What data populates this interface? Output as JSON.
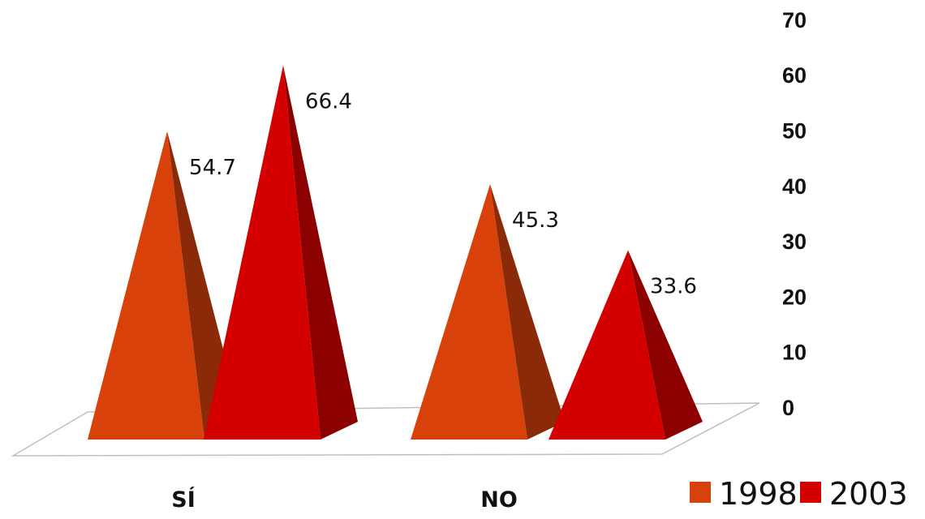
{
  "chart_data": {
    "type": "bar",
    "style": "3d-pyramid",
    "categories": [
      "SÍ",
      "NO"
    ],
    "series": [
      {
        "name": "1998",
        "values": [
          54.7,
          45.3
        ],
        "color": "#d9410a",
        "shade": "#8a2a08"
      },
      {
        "name": "2003",
        "values": [
          66.4,
          33.6
        ],
        "color": "#d40000",
        "shade": "#8c0000"
      }
    ],
    "data_labels": [
      [
        "54.7",
        "45.3"
      ],
      [
        "66.4",
        "33.6"
      ]
    ],
    "ylim": [
      0,
      70
    ],
    "yticks": [
      0,
      10,
      20,
      30,
      40,
      50,
      60,
      70
    ],
    "y_axis_position": "right",
    "legend": "bottom-right",
    "grid": false,
    "title": "",
    "xlabel": "",
    "ylabel": ""
  }
}
